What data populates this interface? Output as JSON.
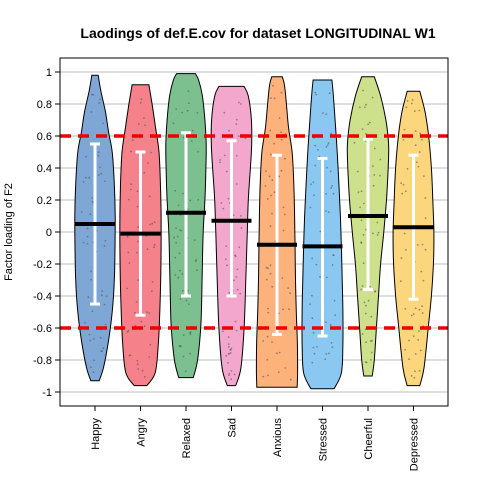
{
  "chart_data": {
    "type": "violin",
    "title": "Laodings of def.E.cov for dataset LONGITUDINAL W1",
    "xlabel": "",
    "ylabel": "Factor loading of F2",
    "ylim": [
      -1,
      1
    ],
    "yticks": [
      "-1",
      "-0.8",
      "-0.6",
      "-0.4",
      "-0.2",
      "0",
      "0.2",
      "0.4",
      "0.6",
      "0.8",
      "1"
    ],
    "grid": "horizontal",
    "reference_lines": [
      0.6,
      -0.6
    ],
    "reference_line_color": "#ee0000",
    "categories": [
      "Happy",
      "Angry",
      "Relaxed",
      "Sad",
      "Anxious",
      "Stressed",
      "Cheerful",
      "Depressed"
    ],
    "colors": [
      "#7fa7d6",
      "#f5818a",
      "#7dc08f",
      "#f4a7cd",
      "#fdb27c",
      "#8ac8f2",
      "#cde08c",
      "#fbd67d"
    ],
    "series": [
      {
        "category": "Happy",
        "min": -0.93,
        "max": 0.98,
        "mean": 0.05,
        "lower": -0.45,
        "upper": 0.55,
        "density": [
          [
            -0.93,
            0.2
          ],
          [
            -0.85,
            0.4
          ],
          [
            -0.7,
            0.62
          ],
          [
            -0.5,
            0.82
          ],
          [
            -0.3,
            0.92
          ],
          [
            -0.1,
            0.95
          ],
          [
            0.1,
            0.96
          ],
          [
            0.3,
            0.92
          ],
          [
            0.5,
            0.82
          ],
          [
            0.62,
            0.65
          ],
          [
            0.75,
            0.5
          ],
          [
            0.88,
            0.28
          ],
          [
            0.98,
            0.15
          ]
        ]
      },
      {
        "category": "Angry",
        "min": -0.96,
        "max": 0.92,
        "mean": -0.01,
        "lower": -0.52,
        "upper": 0.5,
        "density": [
          [
            -0.96,
            0.3
          ],
          [
            -0.88,
            0.7
          ],
          [
            -0.7,
            0.85
          ],
          [
            -0.5,
            0.92
          ],
          [
            -0.3,
            0.96
          ],
          [
            -0.1,
            0.98
          ],
          [
            0.1,
            0.98
          ],
          [
            0.3,
            0.95
          ],
          [
            0.5,
            0.88
          ],
          [
            0.65,
            0.72
          ],
          [
            0.8,
            0.55
          ],
          [
            0.92,
            0.4
          ]
        ]
      },
      {
        "category": "Relaxed",
        "min": -0.91,
        "max": 0.99,
        "mean": 0.12,
        "lower": -0.4,
        "upper": 0.62,
        "density": [
          [
            -0.91,
            0.35
          ],
          [
            -0.8,
            0.55
          ],
          [
            -0.6,
            0.7
          ],
          [
            -0.4,
            0.75
          ],
          [
            -0.2,
            0.78
          ],
          [
            0.0,
            0.82
          ],
          [
            0.2,
            0.9
          ],
          [
            0.4,
            0.95
          ],
          [
            0.55,
            0.96
          ],
          [
            0.7,
            0.9
          ],
          [
            0.85,
            0.78
          ],
          [
            0.95,
            0.6
          ],
          [
            0.99,
            0.45
          ]
        ]
      },
      {
        "category": "Sad",
        "min": -0.96,
        "max": 0.91,
        "mean": 0.07,
        "lower": -0.4,
        "upper": 0.57,
        "density": [
          [
            -0.96,
            0.2
          ],
          [
            -0.85,
            0.45
          ],
          [
            -0.6,
            0.6
          ],
          [
            -0.3,
            0.68
          ],
          [
            0.0,
            0.75
          ],
          [
            0.2,
            0.8
          ],
          [
            0.4,
            0.9
          ],
          [
            0.55,
            0.96
          ],
          [
            0.7,
            0.95
          ],
          [
            0.85,
            0.8
          ],
          [
            0.91,
            0.6
          ]
        ]
      },
      {
        "category": "Anxious",
        "min": -0.97,
        "max": 0.97,
        "mean": -0.08,
        "lower": -0.64,
        "upper": 0.48,
        "density": [
          [
            -0.97,
            0.96
          ],
          [
            -0.88,
            0.98
          ],
          [
            -0.7,
            0.97
          ],
          [
            -0.5,
            0.92
          ],
          [
            -0.3,
            0.88
          ],
          [
            -0.1,
            0.86
          ],
          [
            0.1,
            0.84
          ],
          [
            0.3,
            0.8
          ],
          [
            0.5,
            0.72
          ],
          [
            0.65,
            0.55
          ],
          [
            0.8,
            0.45
          ],
          [
            0.92,
            0.35
          ],
          [
            0.97,
            0.25
          ]
        ]
      },
      {
        "category": "Stressed",
        "min": -0.98,
        "max": 0.95,
        "mean": -0.09,
        "lower": -0.65,
        "upper": 0.46,
        "density": [
          [
            -0.98,
            0.55
          ],
          [
            -0.88,
            0.9
          ],
          [
            -0.7,
            0.97
          ],
          [
            -0.5,
            0.97
          ],
          [
            -0.3,
            0.94
          ],
          [
            -0.1,
            0.9
          ],
          [
            0.1,
            0.85
          ],
          [
            0.3,
            0.78
          ],
          [
            0.5,
            0.7
          ],
          [
            0.7,
            0.6
          ],
          [
            0.85,
            0.52
          ],
          [
            0.95,
            0.45
          ]
        ]
      },
      {
        "category": "Cheerful",
        "min": -0.9,
        "max": 0.97,
        "mean": 0.1,
        "lower": -0.36,
        "upper": 0.58,
        "density": [
          [
            -0.9,
            0.2
          ],
          [
            -0.8,
            0.3
          ],
          [
            -0.6,
            0.4
          ],
          [
            -0.4,
            0.5
          ],
          [
            -0.2,
            0.6
          ],
          [
            0.0,
            0.75
          ],
          [
            0.2,
            0.88
          ],
          [
            0.4,
            0.96
          ],
          [
            0.55,
            0.98
          ],
          [
            0.7,
            0.85
          ],
          [
            0.85,
            0.6
          ],
          [
            0.97,
            0.3
          ]
        ]
      },
      {
        "category": "Depressed",
        "min": -0.96,
        "max": 0.88,
        "mean": 0.03,
        "lower": -0.42,
        "upper": 0.48,
        "density": [
          [
            -0.96,
            0.3
          ],
          [
            -0.85,
            0.5
          ],
          [
            -0.6,
            0.7
          ],
          [
            -0.4,
            0.85
          ],
          [
            -0.2,
            0.95
          ],
          [
            0.0,
            0.97
          ],
          [
            0.2,
            0.92
          ],
          [
            0.4,
            0.85
          ],
          [
            0.6,
            0.72
          ],
          [
            0.75,
            0.55
          ],
          [
            0.88,
            0.3
          ]
        ]
      }
    ]
  }
}
